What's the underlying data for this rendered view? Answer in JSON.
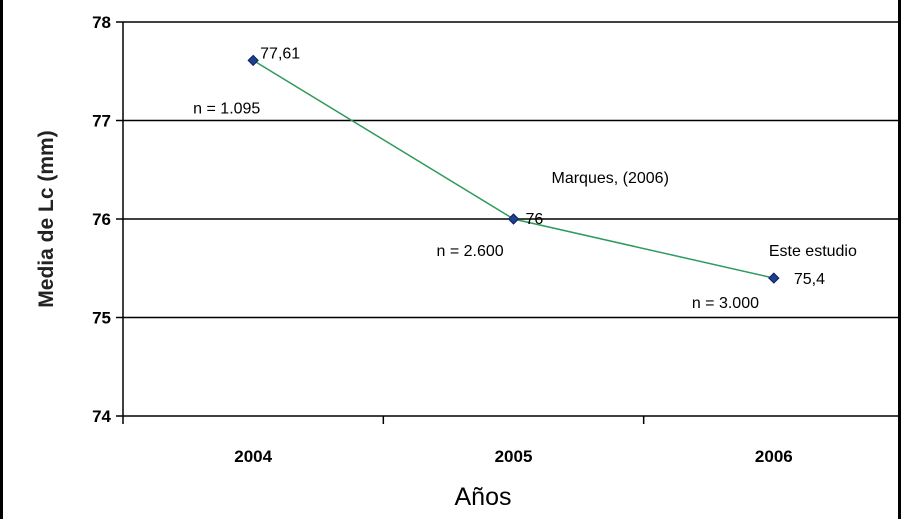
{
  "chart_data": {
    "type": "line",
    "categories": [
      "2004",
      "2005",
      "2006"
    ],
    "series": [
      {
        "values": [
          77.61,
          76.0,
          75.4
        ],
        "color": "#2e9a5c",
        "marker_color": "#1f3f8f"
      }
    ],
    "ylim": [
      74,
      78
    ],
    "yticks": [
      "74",
      "75",
      "76",
      "77",
      "78"
    ],
    "ylabel": "Media de Lc (mm)",
    "xlabel": "Años",
    "grid": "horizontal",
    "data_labels": [
      "77,61",
      "76",
      "75,4"
    ],
    "sample_labels": [
      "n = 1.095",
      "n = 2.600",
      "n = 3.000"
    ],
    "point_annotations": [
      "",
      "Marques, (2006)",
      "Este estudio"
    ]
  }
}
